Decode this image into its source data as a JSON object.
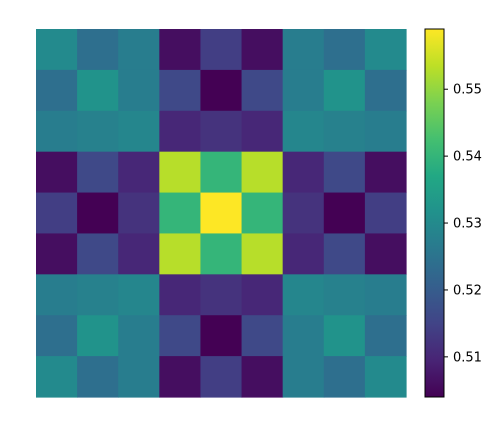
{
  "chart_data": {
    "type": "heatmap",
    "title": "",
    "xlabel": "",
    "ylabel": "",
    "axes_visible": false,
    "colormap": "viridis",
    "rows": 9,
    "cols": 9,
    "values": [
      [
        0.53,
        0.524,
        0.527,
        0.506,
        0.514,
        0.506,
        0.527,
        0.524,
        0.53
      ],
      [
        0.524,
        0.532,
        0.527,
        0.516,
        0.504,
        0.516,
        0.527,
        0.532,
        0.524
      ],
      [
        0.527,
        0.528,
        0.529,
        0.51,
        0.512,
        0.51,
        0.529,
        0.528,
        0.527
      ],
      [
        0.506,
        0.516,
        0.51,
        0.553,
        0.54,
        0.553,
        0.51,
        0.516,
        0.506
      ],
      [
        0.514,
        0.504,
        0.512,
        0.54,
        0.559,
        0.54,
        0.512,
        0.504,
        0.514
      ],
      [
        0.506,
        0.516,
        0.51,
        0.553,
        0.54,
        0.553,
        0.51,
        0.516,
        0.506
      ],
      [
        0.527,
        0.528,
        0.529,
        0.51,
        0.512,
        0.51,
        0.529,
        0.528,
        0.527
      ],
      [
        0.524,
        0.532,
        0.527,
        0.516,
        0.504,
        0.516,
        0.527,
        0.532,
        0.524
      ],
      [
        0.53,
        0.524,
        0.527,
        0.506,
        0.514,
        0.506,
        0.527,
        0.524,
        0.53
      ]
    ],
    "vmin": 0.504,
    "vmax": 0.559,
    "colorbar": {
      "ticks": [
        {
          "value": 0.51,
          "label": "0.51"
        },
        {
          "value": 0.52,
          "label": "0.52"
        },
        {
          "value": 0.53,
          "label": "0.53"
        },
        {
          "value": 0.54,
          "label": "0.54"
        },
        {
          "value": 0.55,
          "label": "0.55"
        }
      ],
      "placement": "right"
    }
  }
}
